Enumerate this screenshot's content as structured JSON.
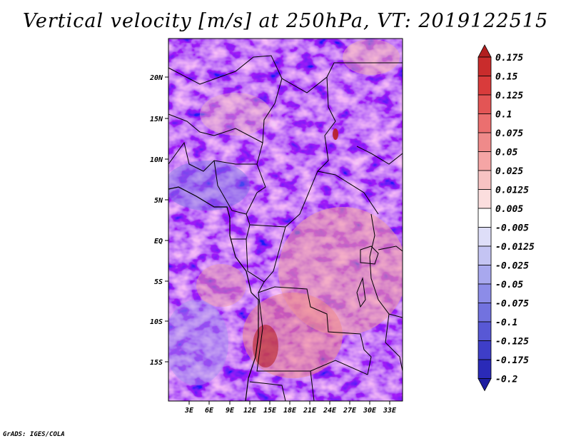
{
  "title": "Vertical velocity [m/s] at 250hPa, VT: 2019122515",
  "credit": "GrADS: IGES/COLA",
  "map": {
    "lat_labels": [
      "20N",
      "15N",
      "10N",
      "5N",
      "EQ",
      "5S",
      "10S",
      "15S"
    ],
    "lon_labels": [
      "3E",
      "6E",
      "9E",
      "12E",
      "15E",
      "18E",
      "21E",
      "24E",
      "27E",
      "30E",
      "33E"
    ],
    "colors": {
      "border": "#000000",
      "frame": "#000000"
    }
  },
  "colorbar": {
    "levels": [
      "0.175",
      "0.15",
      "0.125",
      "0.1",
      "0.075",
      "0.05",
      "0.025",
      "0.0125",
      "0.005",
      "-0.005",
      "-0.0125",
      "-0.025",
      "-0.05",
      "-0.075",
      "-0.1",
      "-0.125",
      "-0.175",
      "-0.2"
    ],
    "colors": [
      "#b21f1f",
      "#c92c2c",
      "#d93b3b",
      "#e35555",
      "#eb6f6f",
      "#ef8a8a",
      "#f5a5a5",
      "#f8c3c3",
      "#fbdede",
      "#ffffff",
      "#dedef8",
      "#c4c4f3",
      "#a8a8ee",
      "#8c8ce8",
      "#7272df",
      "#5858d5",
      "#3e3ec8",
      "#2a2ab8",
      "#1e1ea0"
    ]
  }
}
